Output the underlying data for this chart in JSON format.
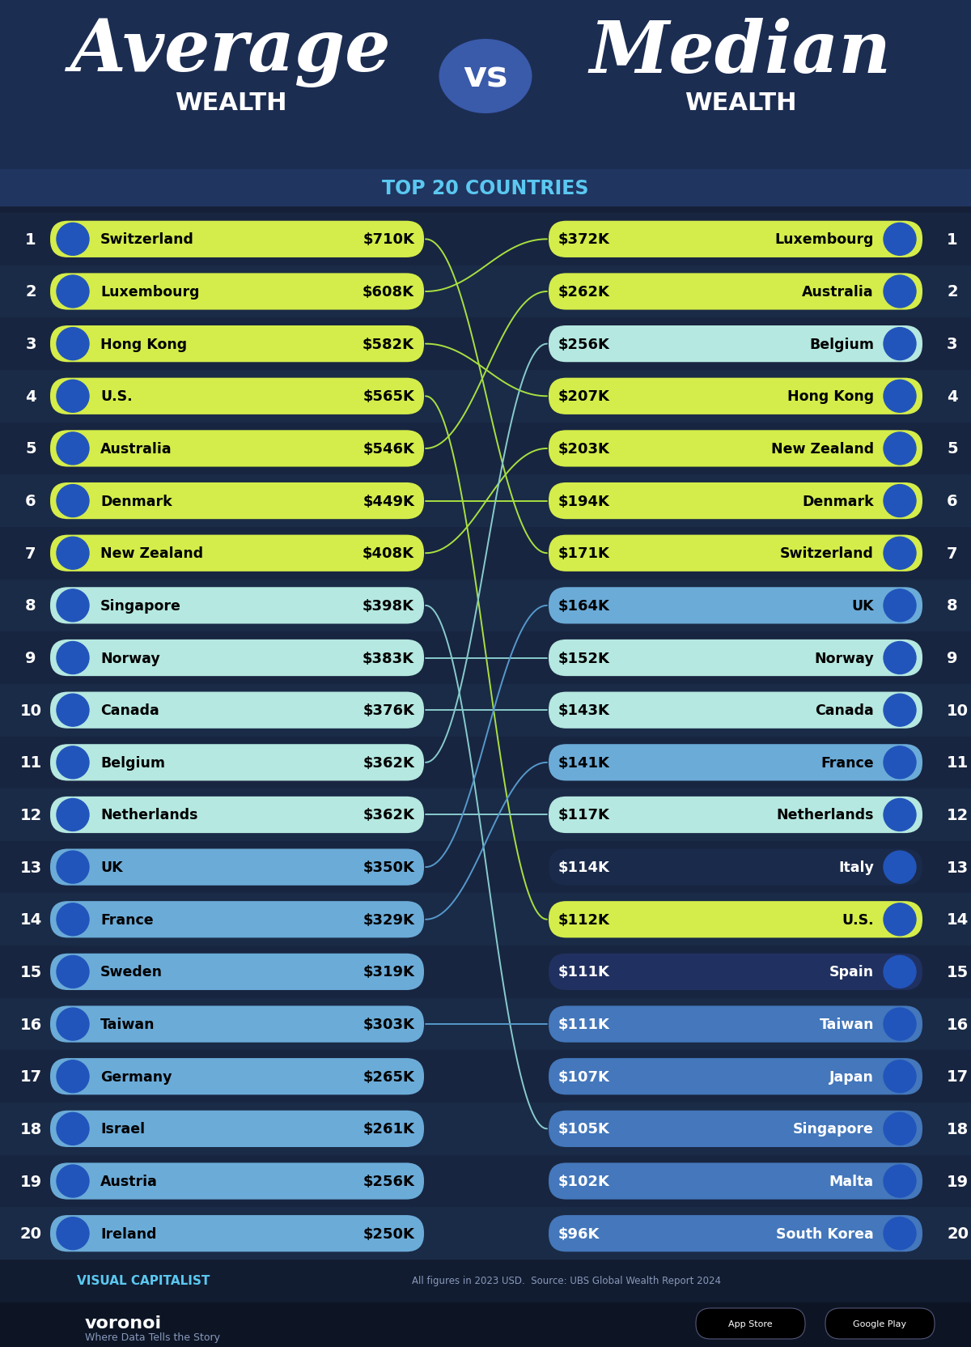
{
  "bg_dark": "#152038",
  "bg_header": "#1c2d52",
  "title_color": "#5bc8f0",
  "avg_data": [
    {
      "rank": 1,
      "country": "Switzerland",
      "value": "$710K",
      "color": "#d4ed4a"
    },
    {
      "rank": 2,
      "country": "Luxembourg",
      "value": "$608K",
      "color": "#d4ed4a"
    },
    {
      "rank": 3,
      "country": "Hong Kong",
      "value": "$582K",
      "color": "#d4ed4a"
    },
    {
      "rank": 4,
      "country": "U.S.",
      "value": "$565K",
      "color": "#d4ed4a"
    },
    {
      "rank": 5,
      "country": "Australia",
      "value": "$546K",
      "color": "#d4ed4a"
    },
    {
      "rank": 6,
      "country": "Denmark",
      "value": "$449K",
      "color": "#d4ed4a"
    },
    {
      "rank": 7,
      "country": "New Zealand",
      "value": "$408K",
      "color": "#d4ed4a"
    },
    {
      "rank": 8,
      "country": "Singapore",
      "value": "$398K",
      "color": "#b5e8e0"
    },
    {
      "rank": 9,
      "country": "Norway",
      "value": "$383K",
      "color": "#b5e8e0"
    },
    {
      "rank": 10,
      "country": "Canada",
      "value": "$376K",
      "color": "#b5e8e0"
    },
    {
      "rank": 11,
      "country": "Belgium",
      "value": "$362K",
      "color": "#b5e8e0"
    },
    {
      "rank": 12,
      "country": "Netherlands",
      "value": "$362K",
      "color": "#b5e8e0"
    },
    {
      "rank": 13,
      "country": "UK",
      "value": "$350K",
      "color": "#6babd8"
    },
    {
      "rank": 14,
      "country": "France",
      "value": "$329K",
      "color": "#6babd8"
    },
    {
      "rank": 15,
      "country": "Sweden",
      "value": "$319K",
      "color": "#6babd8"
    },
    {
      "rank": 16,
      "country": "Taiwan",
      "value": "$303K",
      "color": "#6babd8"
    },
    {
      "rank": 17,
      "country": "Germany",
      "value": "$265K",
      "color": "#6babd8"
    },
    {
      "rank": 18,
      "country": "Israel",
      "value": "$261K",
      "color": "#6babd8"
    },
    {
      "rank": 19,
      "country": "Austria",
      "value": "$256K",
      "color": "#6babd8"
    },
    {
      "rank": 20,
      "country": "Ireland",
      "value": "$250K",
      "color": "#6babd8"
    }
  ],
  "med_data": [
    {
      "rank": 1,
      "country": "Luxembourg",
      "value": "$372K",
      "color": "#d4ed4a"
    },
    {
      "rank": 2,
      "country": "Australia",
      "value": "$262K",
      "color": "#d4ed4a"
    },
    {
      "rank": 3,
      "country": "Belgium",
      "value": "$256K",
      "color": "#b5e8e0"
    },
    {
      "rank": 4,
      "country": "Hong Kong",
      "value": "$207K",
      "color": "#d4ed4a"
    },
    {
      "rank": 5,
      "country": "New Zealand",
      "value": "$203K",
      "color": "#d4ed4a"
    },
    {
      "rank": 6,
      "country": "Denmark",
      "value": "$194K",
      "color": "#d4ed4a"
    },
    {
      "rank": 7,
      "country": "Switzerland",
      "value": "$171K",
      "color": "#d4ed4a"
    },
    {
      "rank": 8,
      "country": "UK",
      "value": "$164K",
      "color": "#6babd8"
    },
    {
      "rank": 9,
      "country": "Norway",
      "value": "$152K",
      "color": "#b5e8e0"
    },
    {
      "rank": 10,
      "country": "Canada",
      "value": "$143K",
      "color": "#b5e8e0"
    },
    {
      "rank": 11,
      "country": "France",
      "value": "$141K",
      "color": "#6babd8"
    },
    {
      "rank": 12,
      "country": "Netherlands",
      "value": "$117K",
      "color": "#b5e8e0"
    },
    {
      "rank": 13,
      "country": "Italy",
      "value": "$114K",
      "color": "#1a2a4a"
    },
    {
      "rank": 14,
      "country": "U.S.",
      "value": "$112K",
      "color": "#d4ed4a"
    },
    {
      "rank": 15,
      "country": "Spain",
      "value": "$111K",
      "color": "#203060"
    },
    {
      "rank": 16,
      "country": "Taiwan",
      "value": "$111K",
      "color": "#4477bb"
    },
    {
      "rank": 17,
      "country": "Japan",
      "value": "$107K",
      "color": "#4477bb"
    },
    {
      "rank": 18,
      "country": "Singapore",
      "value": "$105K",
      "color": "#4477bb"
    },
    {
      "rank": 19,
      "country": "Malta",
      "value": "$102K",
      "color": "#4477bb"
    },
    {
      "rank": 20,
      "country": "South Korea",
      "value": "$96K",
      "color": "#4477bb"
    }
  ],
  "footer_source": "All figures in 2023 USD.  Source: UBS Global Wealth Report 2024",
  "footer_brand": "VISUAL CAPITALIST",
  "footer_tagline": "Where Data Tells the Story"
}
